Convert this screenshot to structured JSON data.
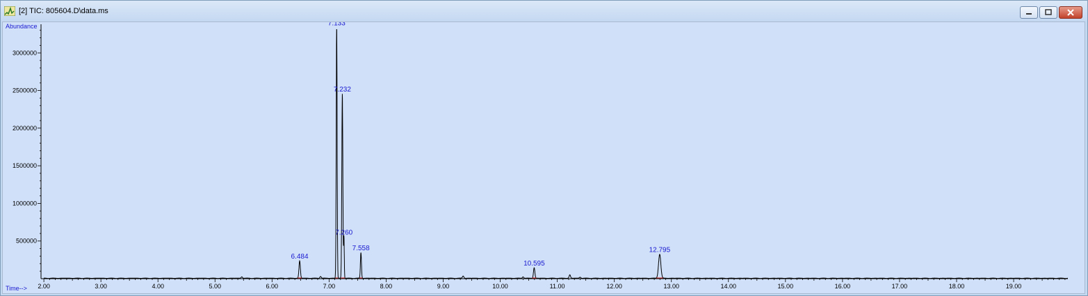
{
  "window": {
    "title": "[2] TIC: 805604.D\\data.ms",
    "icon": "chromatogram-app-icon",
    "buttons": [
      "minimize-icon",
      "maximize-icon",
      "close-icon"
    ],
    "colors": {
      "background": "#d0e0f8",
      "trace": "#000000",
      "peak_label": "#1a1ad0",
      "baseline_marker": "#d02020"
    }
  },
  "chart_data": {
    "type": "line",
    "ylabel": "Abundance",
    "xlabel": "Time-->",
    "xlim": [
      1.95,
      19.95
    ],
    "ylim": [
      0,
      3380000
    ],
    "x_ticks": [
      "2.00",
      "3.00",
      "4.00",
      "5.00",
      "6.00",
      "7.00",
      "8.00",
      "9.00",
      "10.00",
      "11.00",
      "12.00",
      "13.00",
      "14.00",
      "15.00",
      "16.00",
      "17.00",
      "18.00",
      "19.00"
    ],
    "x_tick_values": [
      2,
      3,
      4,
      5,
      6,
      7,
      8,
      9,
      10,
      11,
      12,
      13,
      14,
      15,
      16,
      17,
      18,
      19
    ],
    "y_ticks": [
      "500000",
      "1000000",
      "1500000",
      "2000000",
      "2500000",
      "3000000"
    ],
    "y_tick_values": [
      500000,
      1000000,
      1500000,
      2000000,
      2500000,
      3000000
    ],
    "grid": false,
    "peaks": [
      {
        "rt": 6.484,
        "label": "6.484",
        "height": 230000,
        "width": 0.012
      },
      {
        "rt": 7.133,
        "label": "7.133",
        "height": 3330000,
        "width": 0.008
      },
      {
        "rt": 7.232,
        "label": "7.232",
        "height": 2450000,
        "width": 0.009
      },
      {
        "rt": 7.26,
        "label": "7.260",
        "height": 550000,
        "width": 0.006
      },
      {
        "rt": 7.558,
        "label": "7.558",
        "height": 340000,
        "width": 0.009
      },
      {
        "rt": 10.595,
        "label": "10.595",
        "height": 140000,
        "width": 0.012
      },
      {
        "rt": 12.795,
        "label": "12.795",
        "height": 320000,
        "width": 0.02
      }
    ],
    "minor_peaks": [
      {
        "rt": 5.47,
        "height": 20000
      },
      {
        "rt": 6.85,
        "height": 25000
      },
      {
        "rt": 9.35,
        "height": 30000
      },
      {
        "rt": 10.4,
        "height": 20000
      },
      {
        "rt": 11.22,
        "height": 45000
      },
      {
        "rt": 11.4,
        "height": 15000
      }
    ]
  }
}
